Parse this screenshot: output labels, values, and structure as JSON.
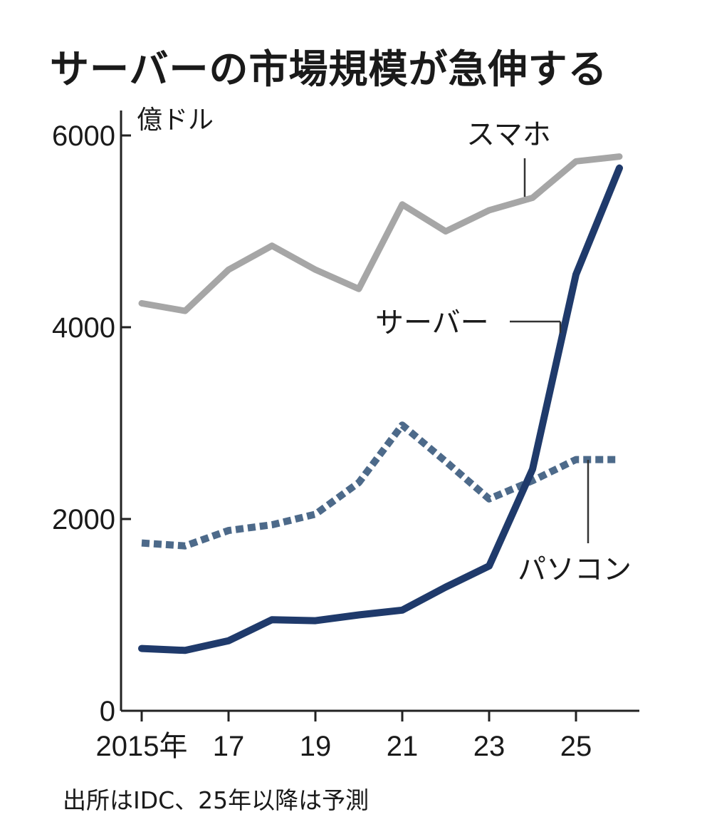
{
  "chart_data": {
    "type": "line",
    "title": "サーバーの市場規模が急伸する",
    "ylabel": "億ドル",
    "xlabel": "",
    "x": [
      2015,
      2016,
      2017,
      2018,
      2019,
      2020,
      2021,
      2022,
      2023,
      2024,
      2025,
      2026
    ],
    "xlim": [
      2015,
      2026
    ],
    "ylim": [
      0,
      6000
    ],
    "x_ticks": [
      {
        "value": 2015,
        "label": "2015年"
      },
      {
        "value": 2017,
        "label": "17"
      },
      {
        "value": 2019,
        "label": "19"
      },
      {
        "value": 2021,
        "label": "21"
      },
      {
        "value": 2023,
        "label": "23"
      },
      {
        "value": 2025,
        "label": "25"
      }
    ],
    "y_ticks": [
      {
        "value": 0,
        "label": "0"
      },
      {
        "value": 2000,
        "label": "2000"
      },
      {
        "value": 4000,
        "label": "4000"
      },
      {
        "value": 6000,
        "label": "6000"
      }
    ],
    "grid": false,
    "series": [
      {
        "name": "スマホ",
        "color": "#a6a6a6",
        "style": "solid",
        "values": [
          4250,
          4170,
          4600,
          4850,
          4600,
          4400,
          5280,
          5000,
          5220,
          5350,
          5730,
          5780
        ]
      },
      {
        "name": "パソコン",
        "color": "#4d6a8a",
        "style": "dotted",
        "values": [
          1750,
          1720,
          1880,
          1940,
          2050,
          2380,
          2980,
          2600,
          2210,
          2400,
          2620,
          2620
        ]
      },
      {
        "name": "サーバー",
        "color": "#1f3a6b",
        "style": "solid",
        "values": [
          650,
          630,
          730,
          950,
          940,
          1000,
          1050,
          1290,
          1510,
          2520,
          4550,
          5660
        ]
      }
    ],
    "source": "出所はIDC、25年以降は予測"
  }
}
